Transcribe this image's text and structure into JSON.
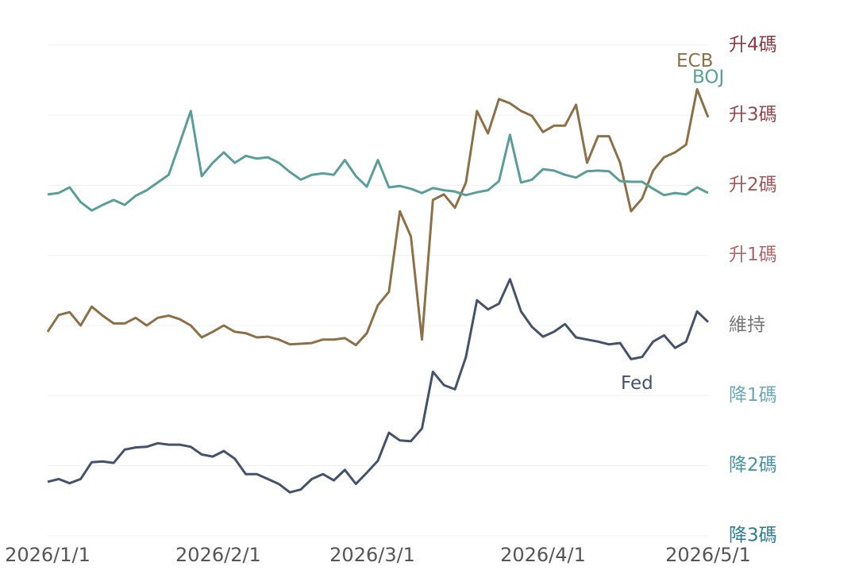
{
  "chart_data": {
    "type": "line",
    "x": [
      "2026-01-01",
      "2026-01-03",
      "2026-01-05",
      "2026-01-07",
      "2026-01-09",
      "2026-01-11",
      "2026-01-13",
      "2026-01-15",
      "2026-01-17",
      "2026-01-19",
      "2026-01-21",
      "2026-01-23",
      "2026-01-25",
      "2026-01-27",
      "2026-01-29",
      "2026-01-31",
      "2026-02-02",
      "2026-02-04",
      "2026-02-06",
      "2026-02-08",
      "2026-02-10",
      "2026-02-12",
      "2026-02-14",
      "2026-02-16",
      "2026-02-18",
      "2026-02-20",
      "2026-02-22",
      "2026-02-24",
      "2026-02-26",
      "2026-02-28",
      "2026-03-02",
      "2026-03-04",
      "2026-03-06",
      "2026-03-08",
      "2026-03-10",
      "2026-03-12",
      "2026-03-14",
      "2026-03-16",
      "2026-03-18",
      "2026-03-20",
      "2026-03-22",
      "2026-03-24",
      "2026-03-26",
      "2026-03-28",
      "2026-03-30",
      "2026-04-01",
      "2026-04-03",
      "2026-04-05",
      "2026-04-07",
      "2026-04-09",
      "2026-04-11",
      "2026-04-13",
      "2026-04-15",
      "2026-04-17",
      "2026-04-19",
      "2026-04-21",
      "2026-04-23",
      "2026-04-25",
      "2026-04-27",
      "2026-04-29",
      "2026-05-01"
    ],
    "series": [
      {
        "name": "Fed",
        "color": "#45526a",
        "values": [
          -2.23,
          -2.19,
          -2.25,
          -2.19,
          -1.95,
          -1.94,
          -1.96,
          -1.77,
          -1.74,
          -1.73,
          -1.68,
          -1.7,
          -1.7,
          -1.73,
          -1.84,
          -1.87,
          -1.79,
          -1.9,
          -2.12,
          -2.12,
          -2.19,
          -2.26,
          -2.38,
          -2.34,
          -2.19,
          -2.12,
          -2.21,
          -2.06,
          -2.26,
          -2.1,
          -1.93,
          -1.53,
          -1.64,
          -1.65,
          -1.47,
          -0.66,
          -0.85,
          -0.91,
          -0.45,
          0.36,
          0.23,
          0.31,
          0.66,
          0.2,
          -0.02,
          -0.16,
          -0.09,
          0.02,
          -0.17,
          -0.2,
          -0.23,
          -0.27,
          -0.25,
          -0.48,
          -0.45,
          -0.23,
          -0.14,
          -0.32,
          -0.23,
          0.2,
          0.05
        ]
      },
      {
        "name": "ECB",
        "color": "#8c7048",
        "values": [
          -0.09,
          0.15,
          0.19,
          0.0,
          0.27,
          0.14,
          0.03,
          0.03,
          0.11,
          0.0,
          0.11,
          0.14,
          0.09,
          0.0,
          -0.17,
          -0.09,
          0.0,
          -0.09,
          -0.11,
          -0.17,
          -0.16,
          -0.2,
          -0.27,
          -0.26,
          -0.25,
          -0.2,
          -0.2,
          -0.18,
          -0.28,
          -0.11,
          0.29,
          0.48,
          1.63,
          1.27,
          -0.2,
          1.79,
          1.87,
          1.68,
          2.04,
          3.06,
          2.74,
          3.23,
          3.17,
          3.06,
          2.99,
          2.76,
          2.85,
          2.85,
          3.15,
          2.32,
          2.7,
          2.7,
          2.32,
          1.63,
          1.81,
          2.21,
          2.4,
          2.47,
          2.58,
          3.37,
          2.97
        ]
      },
      {
        "name": "BOJ",
        "color": "#5a9e98",
        "values": [
          1.87,
          1.89,
          1.97,
          1.76,
          1.64,
          1.72,
          1.79,
          1.72,
          1.85,
          1.93,
          2.04,
          2.15,
          2.6,
          3.06,
          2.13,
          2.32,
          2.47,
          2.32,
          2.42,
          2.38,
          2.4,
          2.32,
          2.19,
          2.08,
          2.15,
          2.17,
          2.15,
          2.36,
          2.13,
          1.98,
          2.36,
          1.97,
          1.99,
          1.95,
          1.89,
          1.96,
          1.93,
          1.91,
          1.86,
          1.9,
          1.93,
          2.06,
          2.72,
          2.04,
          2.08,
          2.23,
          2.21,
          2.15,
          2.11,
          2.2,
          2.21,
          2.2,
          2.06,
          2.05,
          2.05,
          1.95,
          1.86,
          1.89,
          1.87,
          1.97,
          1.89
        ]
      }
    ],
    "xlim": [
      "2026-01-01",
      "2026-05-01"
    ],
    "xticks": [
      {
        "value": "2026-01-01",
        "label": "2026/1/1"
      },
      {
        "value": "2026-02-01",
        "label": "2026/2/1"
      },
      {
        "value": "2026-03-01",
        "label": "2026/3/1"
      },
      {
        "value": "2026-04-01",
        "label": "2026/4/1"
      },
      {
        "value": "2026-05-01",
        "label": "2026/5/1"
      }
    ],
    "ylim": [
      -3.3,
      4.4
    ],
    "yticks": [
      {
        "value": -3,
        "label": "降3碼"
      },
      {
        "value": -2,
        "label": "降2碼"
      },
      {
        "value": -1,
        "label": "降1碼"
      },
      {
        "value": 0,
        "label": "維持"
      },
      {
        "value": 1,
        "label": "升1碼"
      },
      {
        "value": 2,
        "label": "升2碼"
      },
      {
        "value": 3,
        "label": "升3碼"
      },
      {
        "value": 4,
        "label": "升4碼"
      }
    ],
    "ytick_colors": [
      "#2e7f8e",
      "#4a93a0",
      "#6aaab3",
      "#777777",
      "#b0666d",
      "#a3555c",
      "#944650",
      "#8a3a44"
    ],
    "grid": true
  }
}
